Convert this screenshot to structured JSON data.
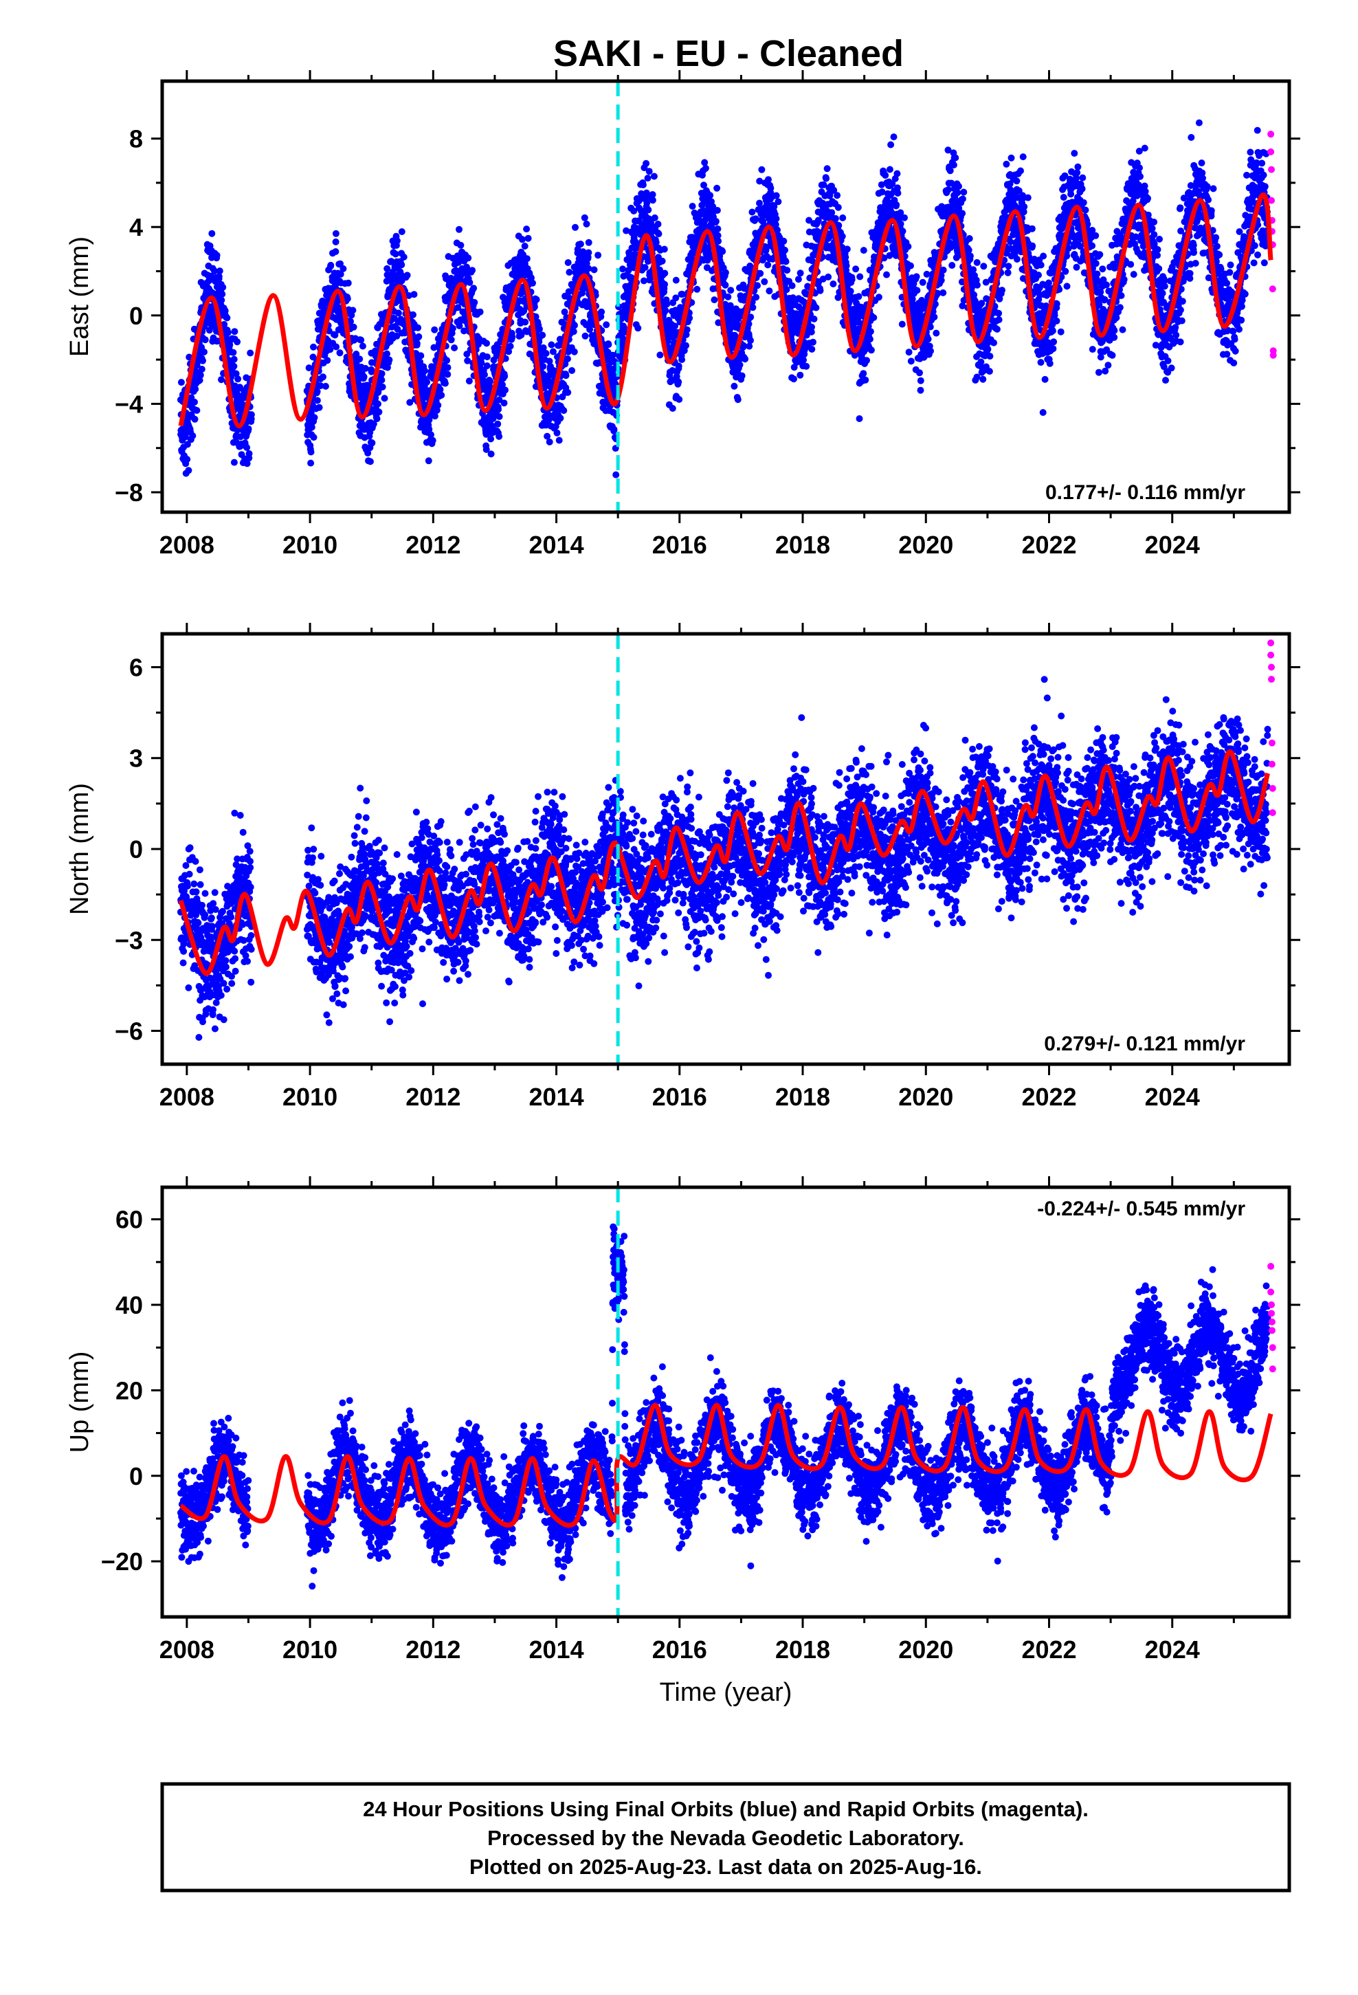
{
  "title": "SAKI  - EU - Cleaned",
  "footer": {
    "lines": [
      "24 Hour Positions Using Final Orbits (blue) and Rapid Orbits (magenta).",
      "Processed by the Nevada Geodetic Laboratory.",
      "Plotted on 2025-Aug-23. Last data on 2025-Aug-16."
    ]
  },
  "colors": {
    "final_orbits": "#0000ff",
    "rapid_orbits": "#ff00ff",
    "model_fit": "#ff0000",
    "discontinuity": "#00e5e5",
    "frame": "#000000"
  },
  "chart_data": [
    {
      "type": "scatter",
      "ylabel": "East (mm)",
      "xlabel": "",
      "rate_label": "0.177+/- 0.116 mm/yr",
      "xlim": [
        2007.6,
        2025.9
      ],
      "ylim": [
        -8.9,
        10.6
      ],
      "x_ticks": [
        2008,
        2010,
        2012,
        2014,
        2016,
        2018,
        2020,
        2022,
        2024
      ],
      "y_ticks": [
        -8,
        -4,
        0,
        4,
        8
      ],
      "discontinuity_x": 2015.0,
      "grid": false,
      "series": [
        {
          "style": "final-orbit points",
          "data_span": [
            2007.9,
            2025.55
          ],
          "trend": [
            [
              2008.0,
              -2.1
            ],
            [
              2014.99,
              -0.9
            ],
            [
              2015.0,
              1.2
            ],
            [
              2025.55,
              2.7
            ]
          ],
          "annual_amplitude": 2.8,
          "annual_peak_phase": 0.42,
          "scatter_sd": 1.1
        },
        {
          "style": "rapid-orbit points",
          "points": [
            [
              2025.6,
              8.2
            ],
            [
              2025.6,
              7.4
            ],
            [
              2025.61,
              6.6
            ],
            [
              2025.61,
              5.2
            ],
            [
              2025.62,
              4.3
            ],
            [
              2025.62,
              3.8
            ],
            [
              2025.63,
              3.2
            ],
            [
              2025.63,
              1.2
            ],
            [
              2025.64,
              -1.6
            ],
            [
              2025.64,
              -1.8
            ]
          ]
        },
        {
          "style": "model fit",
          "points": [
            [
              2007.9,
              -5.0
            ],
            [
              2008.4,
              0.8
            ],
            [
              2008.85,
              -5.0
            ],
            [
              2009.4,
              0.9
            ],
            [
              2009.85,
              -4.7
            ],
            [
              2010.45,
              1.1
            ],
            [
              2010.85,
              -4.6
            ],
            [
              2011.45,
              1.3
            ],
            [
              2011.85,
              -4.5
            ],
            [
              2012.45,
              1.4
            ],
            [
              2012.85,
              -4.3
            ],
            [
              2013.45,
              1.6
            ],
            [
              2013.85,
              -4.2
            ],
            [
              2014.45,
              1.8
            ],
            [
              2014.95,
              -4.0
            ],
            [
              2015.45,
              3.6
            ],
            [
              2015.85,
              -2.1
            ],
            [
              2016.45,
              3.8
            ],
            [
              2016.85,
              -1.9
            ],
            [
              2017.45,
              4.0
            ],
            [
              2017.85,
              -1.8
            ],
            [
              2018.45,
              4.2
            ],
            [
              2018.85,
              -1.6
            ],
            [
              2019.45,
              4.3
            ],
            [
              2019.85,
              -1.4
            ],
            [
              2020.45,
              4.5
            ],
            [
              2020.85,
              -1.2
            ],
            [
              2021.45,
              4.7
            ],
            [
              2021.85,
              -1.0
            ],
            [
              2022.45,
              4.9
            ],
            [
              2022.85,
              -0.9
            ],
            [
              2023.45,
              5.0
            ],
            [
              2023.85,
              -0.7
            ],
            [
              2024.45,
              5.2
            ],
            [
              2024.85,
              -0.5
            ],
            [
              2025.45,
              5.4
            ],
            [
              2025.6,
              2.5
            ]
          ]
        }
      ]
    },
    {
      "type": "scatter",
      "ylabel": "North (mm)",
      "xlabel": "",
      "rate_label": "0.279+/- 0.121 mm/yr",
      "xlim": [
        2007.6,
        2025.9
      ],
      "ylim": [
        -7.1,
        7.1
      ],
      "x_ticks": [
        2008,
        2010,
        2012,
        2014,
        2016,
        2018,
        2020,
        2022,
        2024
      ],
      "y_ticks": [
        -6,
        -3,
        0,
        3,
        6
      ],
      "discontinuity_x": 2015.0,
      "grid": false,
      "series": [
        {
          "style": "final-orbit points",
          "data_span": [
            2007.9,
            2025.55
          ],
          "trend": [
            [
              2008.0,
              -2.9
            ],
            [
              2015.0,
              -0.9
            ],
            [
              2025.55,
              1.9
            ]
          ],
          "annual_amplitude": 0.9,
          "annual_peak_phase": 0.9,
          "scatter_sd": 1.0
        },
        {
          "style": "rapid-orbit points",
          "points": [
            [
              2025.6,
              6.8
            ],
            [
              2025.6,
              6.4
            ],
            [
              2025.61,
              6.0
            ],
            [
              2025.61,
              5.6
            ],
            [
              2025.62,
              3.5
            ],
            [
              2025.62,
              2.8
            ],
            [
              2025.63,
              2.0
            ],
            [
              2025.63,
              1.2
            ]
          ]
        },
        {
          "style": "model fit",
          "points": [
            [
              2007.9,
              -1.7
            ],
            [
              2008.3,
              -4.1
            ],
            [
              2008.6,
              -2.6
            ],
            [
              2008.75,
              -3.0
            ],
            [
              2008.95,
              -1.5
            ],
            [
              2009.3,
              -3.8
            ],
            [
              2009.6,
              -2.3
            ],
            [
              2009.75,
              -2.6
            ],
            [
              2009.95,
              -1.4
            ],
            [
              2010.3,
              -3.5
            ],
            [
              2010.6,
              -2.0
            ],
            [
              2010.75,
              -2.4
            ],
            [
              2010.95,
              -1.1
            ],
            [
              2011.3,
              -3.1
            ],
            [
              2011.6,
              -1.6
            ],
            [
              2011.75,
              -2.0
            ],
            [
              2011.95,
              -0.7
            ],
            [
              2012.3,
              -2.9
            ],
            [
              2012.6,
              -1.4
            ],
            [
              2012.75,
              -1.8
            ],
            [
              2012.95,
              -0.5
            ],
            [
              2013.3,
              -2.7
            ],
            [
              2013.6,
              -1.2
            ],
            [
              2013.75,
              -1.5
            ],
            [
              2013.95,
              -0.3
            ],
            [
              2014.3,
              -2.4
            ],
            [
              2014.6,
              -0.9
            ],
            [
              2014.75,
              -1.3
            ],
            [
              2014.95,
              0.2
            ],
            [
              2015.3,
              -1.6
            ],
            [
              2015.6,
              -0.4
            ],
            [
              2015.75,
              -0.9
            ],
            [
              2015.95,
              0.7
            ],
            [
              2016.3,
              -1.1
            ],
            [
              2016.6,
              0.1
            ],
            [
              2016.75,
              -0.4
            ],
            [
              2016.95,
              1.2
            ],
            [
              2017.3,
              -0.8
            ],
            [
              2017.6,
              0.4
            ],
            [
              2017.75,
              0.0
            ],
            [
              2017.95,
              1.5
            ],
            [
              2018.3,
              -1.1
            ],
            [
              2018.6,
              0.4
            ],
            [
              2018.75,
              0.0
            ],
            [
              2018.95,
              1.5
            ],
            [
              2019.3,
              -0.2
            ],
            [
              2019.6,
              0.9
            ],
            [
              2019.75,
              0.6
            ],
            [
              2019.95,
              1.9
            ],
            [
              2020.3,
              0.2
            ],
            [
              2020.6,
              1.3
            ],
            [
              2020.75,
              1.0
            ],
            [
              2020.95,
              2.2
            ],
            [
              2021.3,
              -0.2
            ],
            [
              2021.6,
              1.4
            ],
            [
              2021.75,
              1.1
            ],
            [
              2021.95,
              2.4
            ],
            [
              2022.3,
              0.1
            ],
            [
              2022.6,
              1.5
            ],
            [
              2022.75,
              1.2
            ],
            [
              2022.95,
              2.7
            ],
            [
              2023.3,
              0.3
            ],
            [
              2023.6,
              1.7
            ],
            [
              2023.75,
              1.5
            ],
            [
              2023.95,
              3.0
            ],
            [
              2024.3,
              0.6
            ],
            [
              2024.6,
              2.1
            ],
            [
              2024.75,
              1.8
            ],
            [
              2024.95,
              3.2
            ],
            [
              2025.3,
              0.9
            ],
            [
              2025.55,
              2.5
            ]
          ]
        }
      ]
    },
    {
      "type": "scatter",
      "ylabel": "Up (mm)",
      "xlabel": "Time (year)",
      "rate_label": "-0.224+/- 0.545 mm/yr",
      "xlim": [
        2007.6,
        2025.9
      ],
      "ylim": [
        -33.0,
        67.5
      ],
      "x_ticks": [
        2008,
        2010,
        2012,
        2014,
        2016,
        2018,
        2020,
        2022,
        2024
      ],
      "y_ticks": [
        -20,
        0,
        20,
        40,
        60
      ],
      "discontinuity_x": 2015.0,
      "grid": false,
      "series": [
        {
          "style": "final-orbit points",
          "data_span": [
            2007.9,
            2025.55
          ],
          "trend": [
            [
              2008.0,
              -3.0
            ],
            [
              2014.9,
              -4.0
            ],
            [
              2014.92,
              55.0
            ],
            [
              2015.1,
              55.0
            ],
            [
              2015.12,
              4.0
            ],
            [
              2022.95,
              4.0
            ],
            [
              2023.05,
              27.0
            ],
            [
              2025.55,
              27.0
            ]
          ],
          "annual_amplitude": 8.0,
          "annual_peak_phase": 0.6,
          "scatter_sd": 4.5
        },
        {
          "style": "rapid-orbit points",
          "points": [
            [
              2025.6,
              49.0
            ],
            [
              2025.6,
              43.0
            ],
            [
              2025.61,
              40.0
            ],
            [
              2025.61,
              38.0
            ],
            [
              2025.62,
              36.0
            ],
            [
              2025.62,
              34.0
            ],
            [
              2025.63,
              30.0
            ],
            [
              2025.63,
              25.0
            ]
          ]
        },
        {
          "style": "model fit",
          "points": [
            [
              2007.9,
              -7.0
            ],
            [
              2008.3,
              -9.5
            ],
            [
              2008.6,
              4.5
            ],
            [
              2008.85,
              -6.5
            ],
            [
              2009.3,
              -10.0
            ],
            [
              2009.6,
              4.5
            ],
            [
              2009.85,
              -6.5
            ],
            [
              2010.3,
              -10.5
            ],
            [
              2010.6,
              4.5
            ],
            [
              2010.85,
              -7.0
            ],
            [
              2011.3,
              -10.5
            ],
            [
              2011.6,
              4.0
            ],
            [
              2011.85,
              -7.0
            ],
            [
              2012.3,
              -11.0
            ],
            [
              2012.6,
              4.0
            ],
            [
              2012.85,
              -7.0
            ],
            [
              2013.3,
              -11.0
            ],
            [
              2013.6,
              4.0
            ],
            [
              2013.85,
              -7.5
            ],
            [
              2014.3,
              -11.0
            ],
            [
              2014.6,
              3.5
            ],
            [
              2014.85,
              -8.0
            ],
            [
              2014.98,
              -9.5
            ],
            [
              2015.0,
              4.0
            ],
            [
              2015.3,
              3.0
            ],
            [
              2015.6,
              16.5
            ],
            [
              2015.85,
              5.0
            ],
            [
              2016.3,
              3.5
            ],
            [
              2016.6,
              16.5
            ],
            [
              2016.85,
              4.5
            ],
            [
              2017.3,
              3.0
            ],
            [
              2017.6,
              16.5
            ],
            [
              2017.85,
              4.5
            ],
            [
              2018.3,
              2.5
            ],
            [
              2018.6,
              16.0
            ],
            [
              2018.85,
              4.5
            ],
            [
              2019.3,
              2.5
            ],
            [
              2019.6,
              16.0
            ],
            [
              2019.85,
              4.0
            ],
            [
              2020.3,
              2.0
            ],
            [
              2020.6,
              16.0
            ],
            [
              2020.85,
              3.5
            ],
            [
              2021.3,
              2.0
            ],
            [
              2021.6,
              15.5
            ],
            [
              2021.85,
              3.5
            ],
            [
              2022.3,
              2.0
            ],
            [
              2022.6,
              15.5
            ],
            [
              2022.85,
              3.0
            ],
            [
              2023.3,
              1.0
            ],
            [
              2023.6,
              15.0
            ],
            [
              2023.85,
              2.5
            ],
            [
              2024.3,
              0.5
            ],
            [
              2024.6,
              15.0
            ],
            [
              2024.85,
              2.0
            ],
            [
              2025.3,
              0.0
            ],
            [
              2025.6,
              14.5
            ]
          ]
        }
      ]
    }
  ]
}
